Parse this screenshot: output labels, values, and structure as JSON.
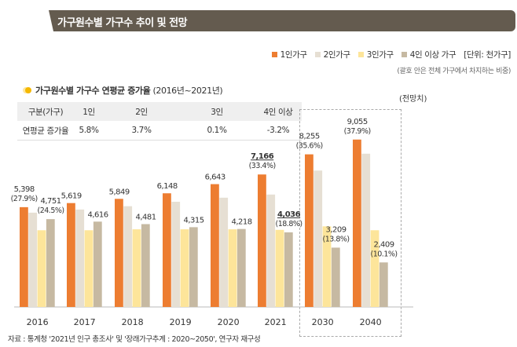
{
  "chart_data": {
    "type": "bar",
    "title": "가구원수별 가구수 추이 및 전망",
    "unit_label": "[단위: 천가구]",
    "note": "(괄호 안은 전체 가구에서 차지하는 비중)",
    "projection_label": "(전망치)",
    "categories": [
      "2016",
      "2017",
      "2018",
      "2019",
      "2020",
      "2021",
      "2030",
      "2040"
    ],
    "series": [
      {
        "name": "1인가구",
        "color": "#ed7d31",
        "values": [
          5398,
          5619,
          5849,
          6148,
          6643,
          7166,
          8255,
          9055
        ],
        "labels": [
          "5,398",
          "5,619",
          "5,849",
          "6,148",
          "6,643",
          "7,166",
          "8,255",
          "9,055"
        ],
        "shares": [
          "(27.9%)",
          "",
          "",
          "",
          "",
          "(33.4%)",
          "(35.6%)",
          "(37.9%)"
        ]
      },
      {
        "name": "2인가구",
        "color": "#e6dfd3",
        "values": [
          5100,
          5270,
          5450,
          5690,
          5910,
          6080,
          7380,
          8290
        ]
      },
      {
        "name": "3인가구",
        "color": "#fde59a",
        "values": [
          4150,
          4150,
          4200,
          4200,
          4200,
          4170,
          4360,
          4150
        ]
      },
      {
        "name": "4인 이상 가구",
        "color": "#c6b9a2",
        "values": [
          4751,
          4616,
          4481,
          4315,
          4218,
          4036,
          3209,
          2409
        ],
        "labels": [
          "4,751",
          "4,616",
          "4,481",
          "4,315",
          "4,218",
          "4,036",
          "3,209",
          "2,409"
        ],
        "shares": [
          "(24.5%)",
          "",
          "",
          "",
          "",
          "(18.8%)",
          "(13.8%)",
          "(10.1%)"
        ]
      }
    ],
    "ylim": [
      0,
      9500
    ],
    "grid": false,
    "legend": "top-right"
  },
  "table": {
    "title": "가구원수별 가구수 연평균 증가율",
    "period": "(2016년~2021년)",
    "headers": [
      "구분(가구)",
      "1인",
      "2인",
      "3인",
      "4인 이상"
    ],
    "row": [
      "연평균 증가율",
      "5.8%",
      "3.7%",
      "0.1%",
      "-3.2%"
    ]
  },
  "source": "자료 : 통계청 '2021년 인구 총조사' 및 '장래가구추계 : 2020~2050', 연구자 재구성"
}
